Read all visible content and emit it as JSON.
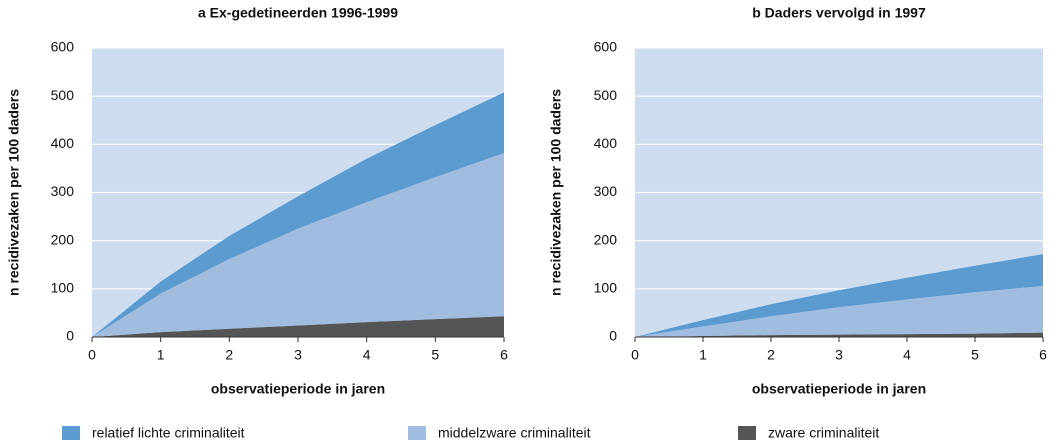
{
  "chart_data": [
    {
      "type": "area",
      "title": "a Ex-gedetineerden 1996-1999",
      "x_label": "observatieperiode in jaren",
      "y_label": "n recidivezaken per 100 daders",
      "x": [
        0,
        1,
        2,
        3,
        4,
        5,
        6
      ],
      "xlim": [
        0,
        6
      ],
      "xticks": [
        0,
        1,
        2,
        3,
        4,
        5,
        6
      ],
      "ylim": [
        0,
        600
      ],
      "yticks": [
        0,
        100,
        200,
        300,
        400,
        500,
        600
      ],
      "grid": true,
      "stacked": true,
      "series": [
        {
          "name": "relatief lichte criminaliteit",
          "color": "#5b9bd0",
          "values": [
            0,
            25,
            48,
            67,
            90,
            108,
            126
          ]
        },
        {
          "name": "middelzware criminaliteit",
          "color": "#a0bde0",
          "values": [
            0,
            80,
            145,
            201,
            249,
            295,
            339
          ]
        },
        {
          "name": "zware criminaliteit",
          "color": "#555555",
          "values": [
            0,
            10,
            17,
            24,
            31,
            37,
            43
          ]
        }
      ]
    },
    {
      "type": "area",
      "title": "b Daders vervolgd in 1997",
      "x_label": "observatieperiode in jaren",
      "y_label": "n recidivezaken per 100 daders",
      "x": [
        0,
        1,
        2,
        3,
        4,
        5,
        6
      ],
      "xlim": [
        0,
        6
      ],
      "xticks": [
        0,
        1,
        2,
        3,
        4,
        5,
        6
      ],
      "ylim": [
        0,
        600
      ],
      "yticks": [
        0,
        100,
        200,
        300,
        400,
        500,
        600
      ],
      "grid": true,
      "stacked": true,
      "series": [
        {
          "color": "#5b9bd0",
          "values": [
            0,
            13,
            25,
            35,
            45,
            55,
            66
          ]
        },
        {
          "color": "#a0bde0",
          "values": [
            0,
            20,
            39,
            57,
            72,
            86,
            97
          ]
        },
        {
          "color": "#555555",
          "values": [
            0,
            2,
            4,
            5,
            6,
            7,
            9
          ]
        }
      ]
    }
  ]
}
